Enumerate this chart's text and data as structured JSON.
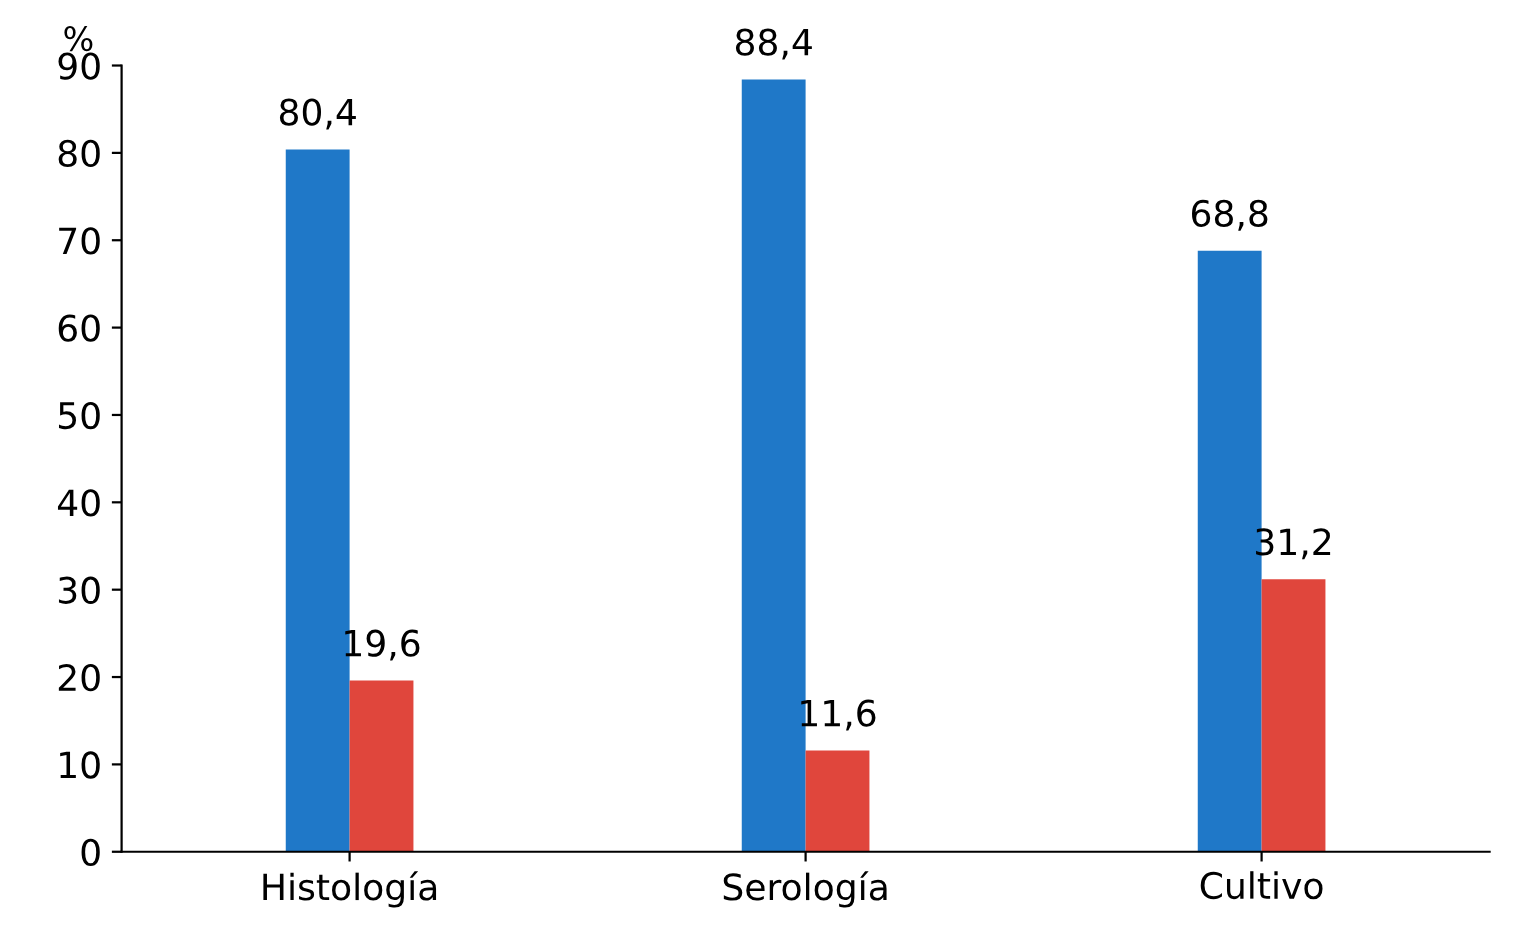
{
  "chart_data": {
    "type": "bar",
    "ylabel": "%",
    "categories": [
      "Histología",
      "Serología",
      "Cultivo"
    ],
    "series": [
      {
        "color": "#1f78c8",
        "values": [
          80.4,
          88.4,
          68.8
        ],
        "value_labels": [
          "80,4",
          "88,4",
          "68,8"
        ]
      },
      {
        "color": "#e0463c",
        "values": [
          19.6,
          11.6,
          31.2
        ],
        "value_labels": [
          "19,6",
          "11,6",
          "31,2"
        ]
      }
    ],
    "ylim": [
      0,
      90
    ],
    "yticks": [
      0,
      10,
      20,
      30,
      40,
      50,
      60,
      70,
      80,
      90
    ],
    "grid": false,
    "legend": false
  }
}
